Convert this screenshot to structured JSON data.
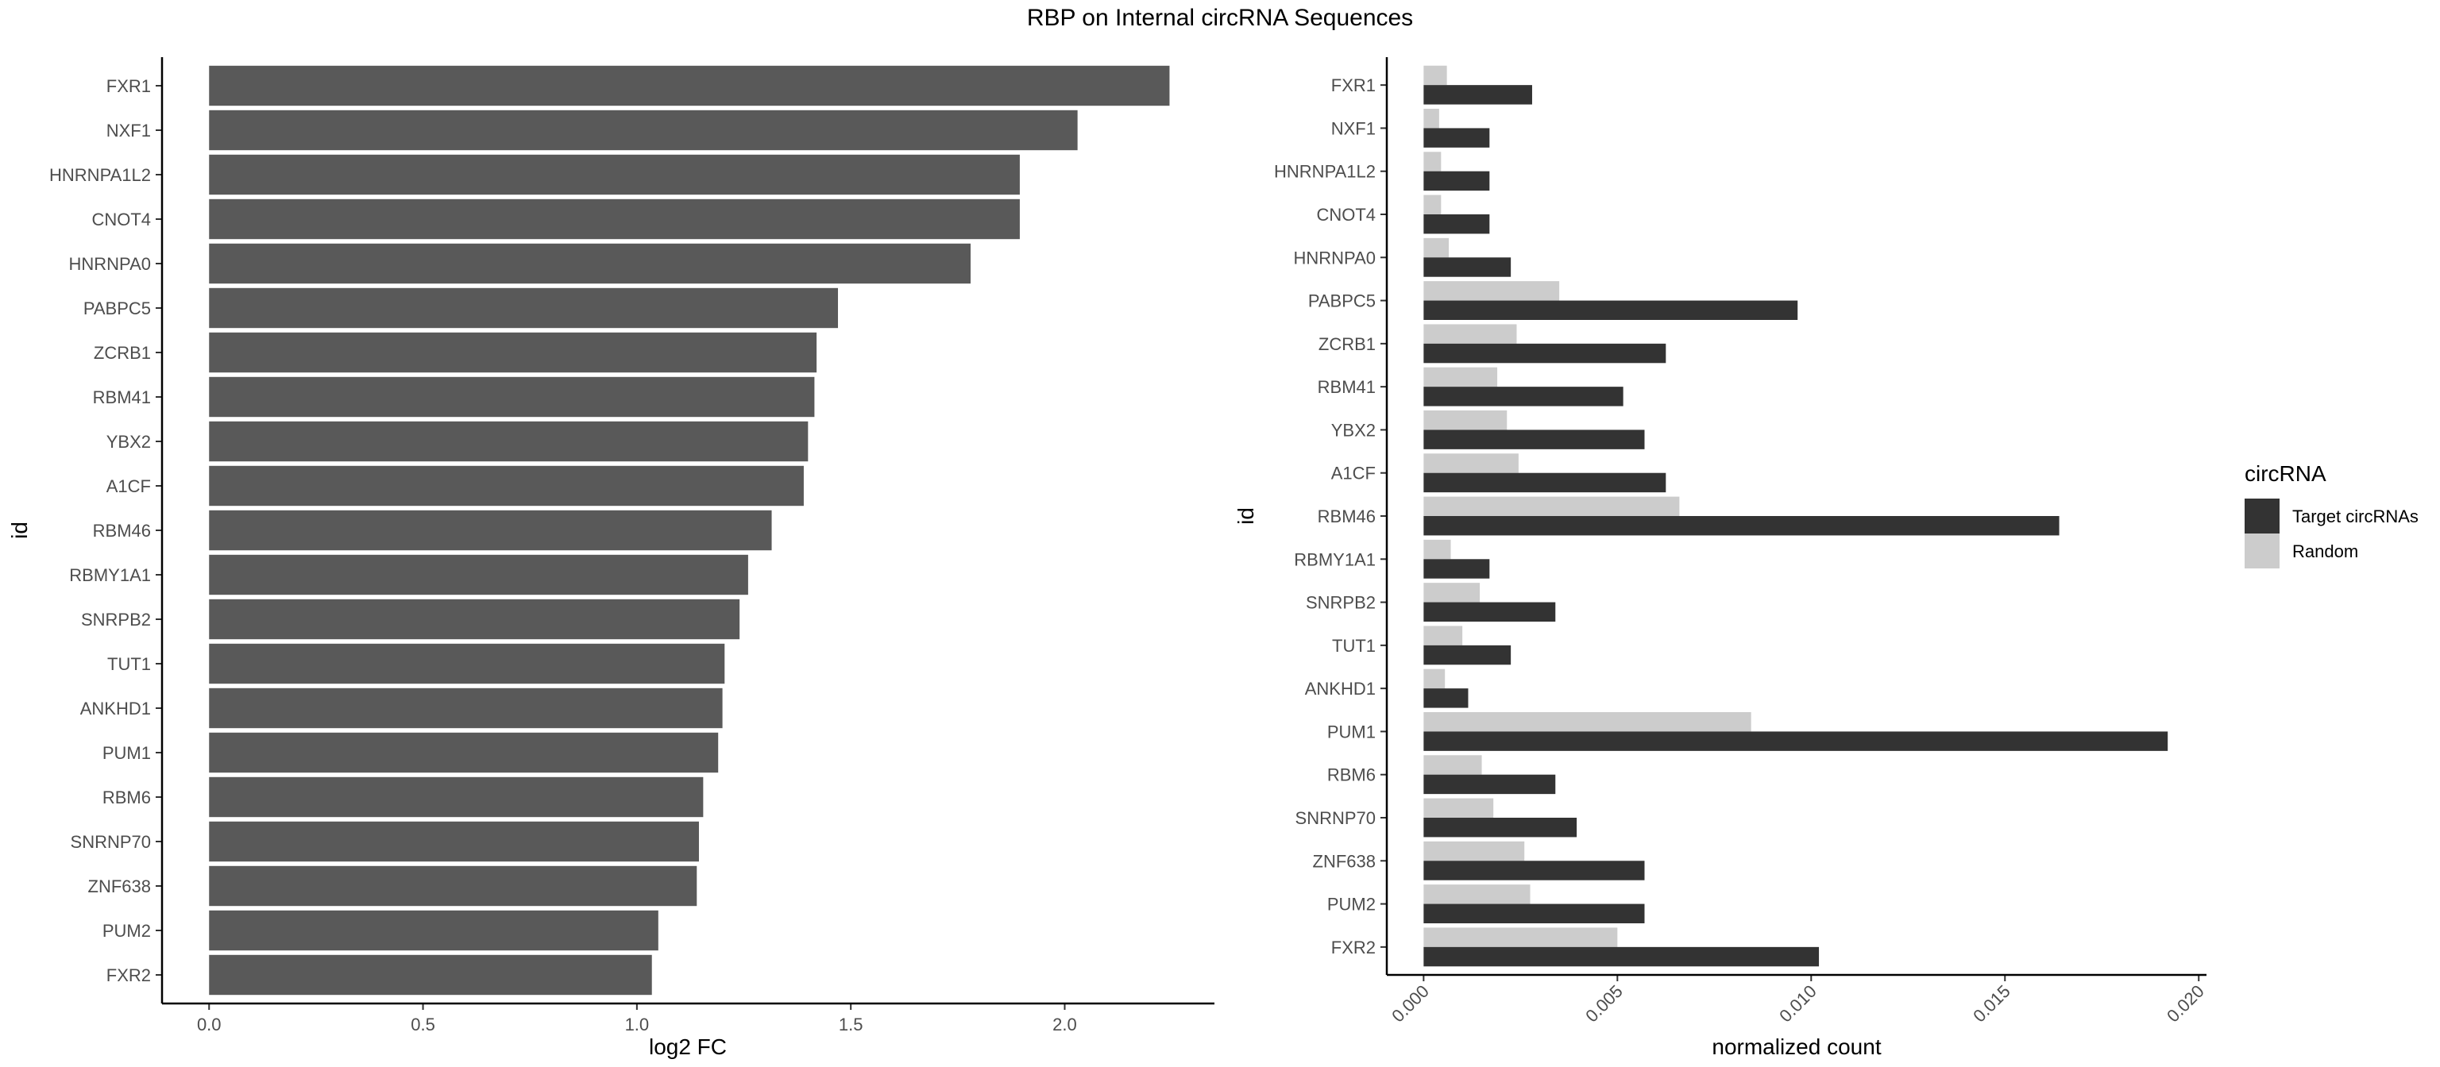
{
  "title": "RBP on Internal circRNA Sequences",
  "colors": {
    "left_bar": "#595959",
    "target": "#333333",
    "random": "#cccccc",
    "axis": "#000000",
    "tick_text": "#4d4d4d"
  },
  "chart_data": [
    {
      "type": "bar",
      "orientation": "horizontal",
      "categories": [
        "FXR1",
        "NXF1",
        "HNRNPA1L2",
        "CNOT4",
        "HNRNPA0",
        "PABPC5",
        "ZCRB1",
        "RBM41",
        "YBX2",
        "A1CF",
        "RBM46",
        "RBMY1A1",
        "SNRPB2",
        "TUT1",
        "ANKHD1",
        "PUM1",
        "RBM6",
        "SNRNP70",
        "ZNF638",
        "PUM2",
        "FXR2"
      ],
      "values": [
        2.245,
        2.03,
        1.895,
        1.895,
        1.78,
        1.47,
        1.42,
        1.415,
        1.4,
        1.39,
        1.315,
        1.26,
        1.24,
        1.205,
        1.2,
        1.19,
        1.155,
        1.145,
        1.14,
        1.05,
        1.035
      ],
      "xlabel": "log2 FC",
      "ylabel": "id",
      "xlim": [
        -0.11,
        2.35
      ],
      "xticks": [
        "0.0",
        "0.5",
        "1.0",
        "1.5",
        "2.0"
      ],
      "grid": false
    },
    {
      "type": "bar",
      "orientation": "horizontal",
      "grouped": true,
      "categories": [
        "FXR1",
        "NXF1",
        "HNRNPA1L2",
        "CNOT4",
        "HNRNPA0",
        "PABPC5",
        "ZCRB1",
        "RBM41",
        "YBX2",
        "A1CF",
        "RBM46",
        "RBMY1A1",
        "SNRPB2",
        "TUT1",
        "ANKHD1",
        "PUM1",
        "RBM6",
        "SNRNP70",
        "ZNF638",
        "PUM2",
        "FXR2"
      ],
      "series": [
        {
          "name": "Target circRNAs",
          "values": [
            0.0028,
            0.0017,
            0.0017,
            0.0017,
            0.00225,
            0.00965,
            0.00625,
            0.00515,
            0.0057,
            0.00625,
            0.0164,
            0.0017,
            0.0034,
            0.00225,
            0.00115,
            0.0192,
            0.0034,
            0.00395,
            0.0057,
            0.0057,
            0.0102
          ]
        },
        {
          "name": "Random",
          "values": [
            0.0006,
            0.0004,
            0.00045,
            0.00045,
            0.00065,
            0.0035,
            0.0024,
            0.0019,
            0.00215,
            0.00245,
            0.0066,
            0.0007,
            0.00145,
            0.001,
            0.00055,
            0.00845,
            0.0015,
            0.0018,
            0.0026,
            0.00275,
            0.005
          ]
        }
      ],
      "xlabel": "normalized count",
      "ylabel": "id",
      "xlim": [
        -0.00095,
        0.0202
      ],
      "xticks": [
        "0.000",
        "0.005",
        "0.010",
        "0.015",
        "0.020"
      ],
      "legend": {
        "title": "circRNA",
        "position": "right"
      },
      "grid": false
    }
  ]
}
